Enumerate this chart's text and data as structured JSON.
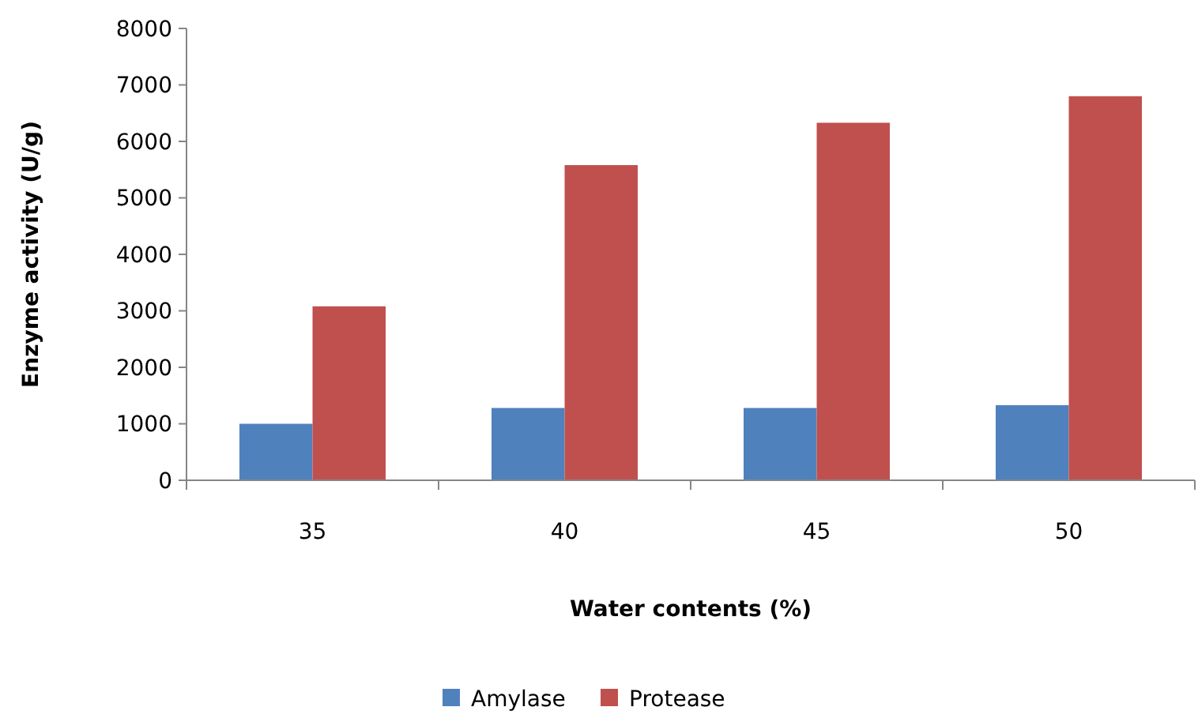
{
  "chart_data": {
    "type": "bar",
    "xlabel": "Water contents (%)",
    "ylabel": "Enzyme activity (U/g)",
    "categories": [
      "35",
      "40",
      "45",
      "50"
    ],
    "series": [
      {
        "name": "Amylase",
        "color": "#4f81bd",
        "values": [
          1000,
          1280,
          1280,
          1330
        ]
      },
      {
        "name": "Protease",
        "color": "#c0504d",
        "values": [
          3080,
          5580,
          6330,
          6800
        ]
      }
    ],
    "ylim": [
      0,
      8000
    ],
    "yticks": [
      0,
      1000,
      2000,
      3000,
      4000,
      5000,
      6000,
      7000,
      8000
    ],
    "grid": false,
    "legend": "bottom"
  }
}
